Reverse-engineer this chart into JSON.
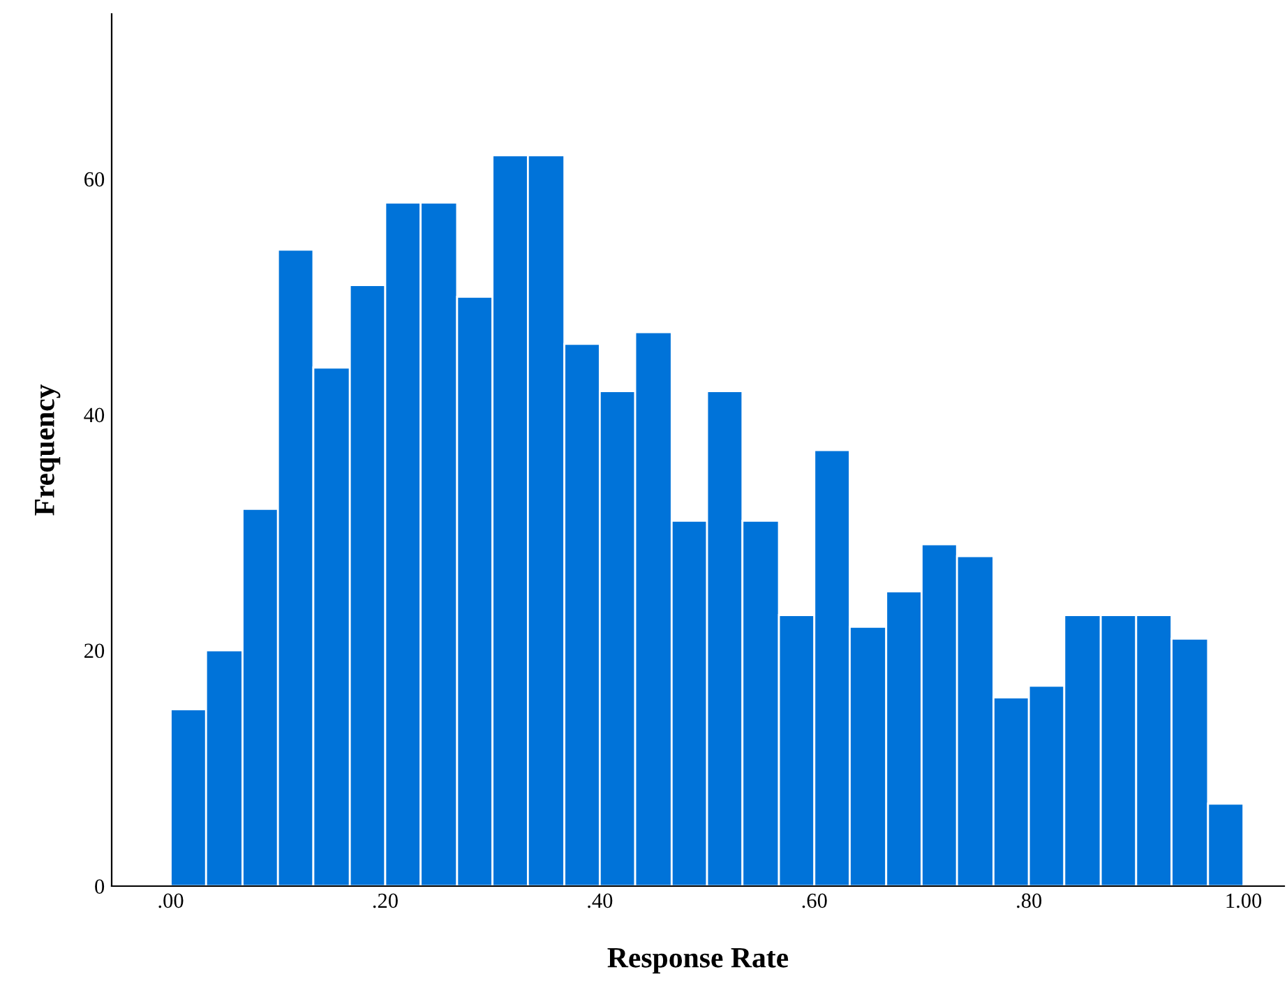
{
  "chart_data": {
    "type": "histogram",
    "xlabel": "Response Rate",
    "ylabel": "Frequency",
    "color": "#0073d9",
    "bins": [
      0,
      0.033,
      0.067,
      0.1,
      0.133,
      0.167,
      0.2,
      0.233,
      0.267,
      0.3,
      0.333,
      0.367,
      0.4,
      0.433,
      0.467,
      0.5,
      0.533,
      0.567,
      0.6,
      0.633,
      0.667,
      0.7,
      0.733,
      0.767,
      0.8,
      0.833,
      0.867,
      0.9,
      0.933,
      0.967,
      1.0
    ],
    "values": [
      15,
      20,
      32,
      54,
      44,
      51,
      58,
      58,
      50,
      62,
      62,
      46,
      42,
      47,
      31,
      42,
      31,
      23,
      37,
      22,
      25,
      29,
      28,
      16,
      17,
      23,
      23,
      23,
      21,
      7
    ],
    "xlim": [
      -0.055,
      1.038
    ],
    "ylim": [
      0,
      74
    ],
    "xticks": [
      {
        "value": 0,
        "label": ".00"
      },
      {
        "value": 0.2,
        "label": ".20"
      },
      {
        "value": 0.4,
        "label": ".40"
      },
      {
        "value": 0.6,
        "label": ".60"
      },
      {
        "value": 0.8,
        "label": ".80"
      },
      {
        "value": 1.0,
        "label": "1.00"
      }
    ],
    "yticks": [
      0,
      20,
      40,
      60
    ],
    "grid": false
  }
}
